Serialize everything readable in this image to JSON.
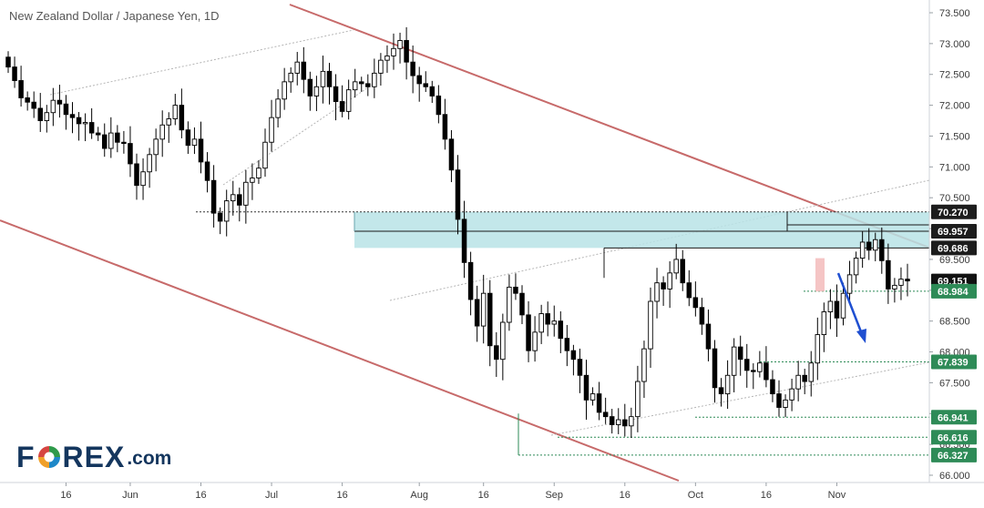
{
  "title": "New Zealand Dollar / Japanese Yen, 1D",
  "logo": {
    "part1": "F",
    "part2": "REX",
    "part3": ".com",
    "colors": [
      "#2f9a4a",
      "#1e88c8",
      "#f0a02a",
      "#d64541"
    ]
  },
  "colors": {
    "up_body": "#ffffff",
    "down_body": "#000000",
    "wick": "#000000",
    "channel": "#c76a6a",
    "zone": "#b9e3e6",
    "zone_border": "#1a1a1a",
    "support": "#2e8b57",
    "arrow": "#1f4fd1",
    "highlight": "#f3b7b7"
  },
  "chart_data": {
    "type": "candlestick",
    "title": "New Zealand Dollar / Japanese Yen, 1D",
    "ylim": [
      66.0,
      73.6
    ],
    "y_ticks": [
      "73.500",
      "73.000",
      "72.500",
      "72.000",
      "71.500",
      "71.000",
      "70.500",
      "70.000",
      "69.500",
      "69.000",
      "68.500",
      "68.000",
      "67.500",
      "67.000",
      "66.500",
      "66.000"
    ],
    "x_ticks": [
      "16",
      "Jun",
      "16",
      "Jul",
      "16",
      "Aug",
      "16",
      "Sep",
      "16",
      "Oct",
      "16",
      "Nov"
    ],
    "price_tags": [
      {
        "value": 70.27,
        "label": "70.270",
        "style": "dark"
      },
      {
        "value": 69.957,
        "label": "69.957",
        "style": "dark"
      },
      {
        "value": 69.686,
        "label": "69.686",
        "style": "dark"
      },
      {
        "value": 69.151,
        "label": "69.151",
        "style": "current"
      },
      {
        "value": 68.984,
        "label": "68.984",
        "style": "green"
      },
      {
        "value": 67.839,
        "label": "67.839",
        "style": "green"
      },
      {
        "value": 66.941,
        "label": "66.941",
        "style": "green"
      },
      {
        "value": 66.616,
        "label": "66.616",
        "style": "green"
      },
      {
        "value": 66.327,
        "label": "66.327",
        "style": "green"
      }
    ],
    "supply_zone": {
      "top": 70.27,
      "bottom": 69.686,
      "start_date": "2020-07-23"
    },
    "closes": [
      72.62,
      72.4,
      72.12,
      72.05,
      71.95,
      71.75,
      71.88,
      72.08,
      72.02,
      71.85,
      71.8,
      71.7,
      71.72,
      71.55,
      71.52,
      71.3,
      71.55,
      71.4,
      71.38,
      71.05,
      70.7,
      70.92,
      71.2,
      71.45,
      71.68,
      71.78,
      72.0,
      71.6,
      71.35,
      71.45,
      71.08,
      70.78,
      70.25,
      70.12,
      70.45,
      70.55,
      70.38,
      70.75,
      70.82,
      70.98,
      71.4,
      71.8,
      72.1,
      72.38,
      72.52,
      72.7,
      72.42,
      72.15,
      72.3,
      72.55,
      72.3,
      72.06,
      71.9,
      72.25,
      72.38,
      72.35,
      72.3,
      72.52,
      72.73,
      72.8,
      72.92,
      73.05,
      72.7,
      72.48,
      72.35,
      72.3,
      72.15,
      71.85,
      71.45,
      70.95,
      70.15,
      69.45,
      68.85,
      68.42,
      68.95,
      68.1,
      67.88,
      68.48,
      69.05,
      68.95,
      68.6,
      68.02,
      68.32,
      68.62,
      68.45,
      68.5,
      68.22,
      68.02,
      67.88,
      67.62,
      67.22,
      67.32,
      67.02,
      66.95,
      66.82,
      66.9,
      66.8,
      66.95,
      67.52,
      68.05,
      68.82,
      69.12,
      69.02,
      69.28,
      69.5,
      69.12,
      68.88,
      68.72,
      68.45,
      68.05,
      67.42,
      67.32,
      67.62,
      68.08,
      67.88,
      67.7,
      67.68,
      67.82,
      67.55,
      67.32,
      67.1,
      67.22,
      67.4,
      67.62,
      67.52,
      67.82,
      68.28,
      68.65,
      68.82,
      68.55,
      68.95,
      69.25,
      69.52,
      69.78,
      69.65,
      69.82,
      69.48,
      69.02,
      69.08,
      69.18,
      69.151
    ]
  }
}
